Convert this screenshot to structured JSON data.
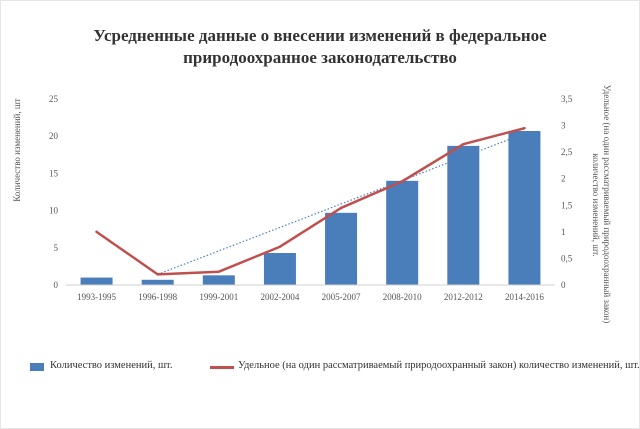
{
  "chart_data": {
    "type": "bar",
    "title_lines": [
      "Усредненные данные о внесении изменений в федеральное",
      "природоохранное законодательство"
    ],
    "ylabel_left": "Количество изменений, шт",
    "ylabel_right": "Удельное (на один рассматриваемый природоохранный закон) количество изменений, шт.",
    "categories": [
      "1993-1995",
      "1996-1998",
      "1999-2001",
      "2002-2004",
      "2005-2007",
      "2008-2010",
      "2012-2012",
      "2014-2016"
    ],
    "y_left_ticks": [
      "0",
      "5",
      "10",
      "15",
      "20",
      "25"
    ],
    "y_right_ticks": [
      "0",
      "0,5",
      "1",
      "1,5",
      "2",
      "2,5",
      "3",
      "3,5"
    ],
    "ylim_left": [
      0,
      25
    ],
    "ylim_right": [
      0,
      3.5
    ],
    "series": [
      {
        "name": "Количество изменений, шт.",
        "type": "bar",
        "axis": "left",
        "color": "#4a7ebb",
        "values": [
          1,
          0.7,
          1.3,
          4.3,
          9.7,
          14,
          18.7,
          20.7
        ]
      },
      {
        "name": "Удельное (на один рассматриваемый природоохранный закон) количество изменений, шт.",
        "type": "line",
        "axis": "right",
        "color": "#c0504d",
        "values": [
          1,
          0.2,
          0.25,
          0.72,
          1.45,
          1.95,
          2.65,
          2.95
        ]
      }
    ],
    "trendline": {
      "type": "linear",
      "color": "#4f81bd",
      "style": "dotted",
      "from_category_index": 1,
      "values": [
        0.2,
        2.85
      ]
    },
    "legend_position": "bottom",
    "grid": false
  }
}
